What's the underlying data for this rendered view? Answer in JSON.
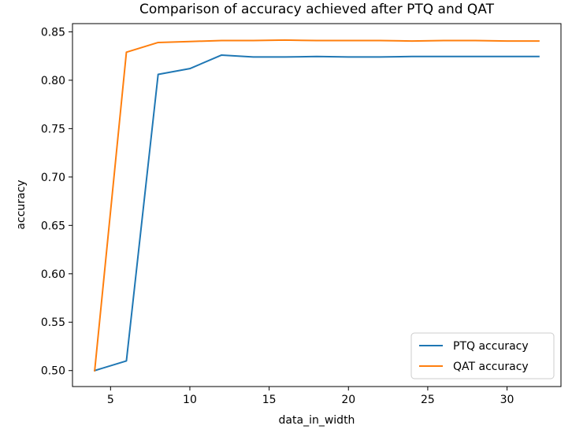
{
  "chart_data": {
    "type": "line",
    "title": "Comparison of accuracy achieved after PTQ and QAT",
    "xlabel": "data_in_width",
    "ylabel": "accuracy",
    "xlim": [
      2.6,
      33.4
    ],
    "ylim": [
      0.4835,
      0.8585
    ],
    "xticks": [
      5,
      10,
      15,
      20,
      25,
      30
    ],
    "yticks": [
      0.5,
      0.55,
      0.6,
      0.65,
      0.7,
      0.75,
      0.8,
      0.85
    ],
    "grid": false,
    "legend_position": "lower-right",
    "x": [
      4,
      6,
      8,
      10,
      12,
      14,
      16,
      18,
      20,
      22,
      24,
      26,
      28,
      30,
      32
    ],
    "series": [
      {
        "name": "PTQ accuracy",
        "color": "#1f77b4",
        "values": [
          0.5,
          0.51,
          0.806,
          0.812,
          0.826,
          0.824,
          0.824,
          0.8245,
          0.824,
          0.824,
          0.8245,
          0.8245,
          0.8245,
          0.8245,
          0.8245
        ]
      },
      {
        "name": "QAT accuracy",
        "color": "#ff7f0e",
        "values": [
          0.5,
          0.829,
          0.839,
          0.84,
          0.841,
          0.841,
          0.8415,
          0.841,
          0.841,
          0.841,
          0.8405,
          0.841,
          0.841,
          0.8405,
          0.8405
        ]
      }
    ]
  }
}
